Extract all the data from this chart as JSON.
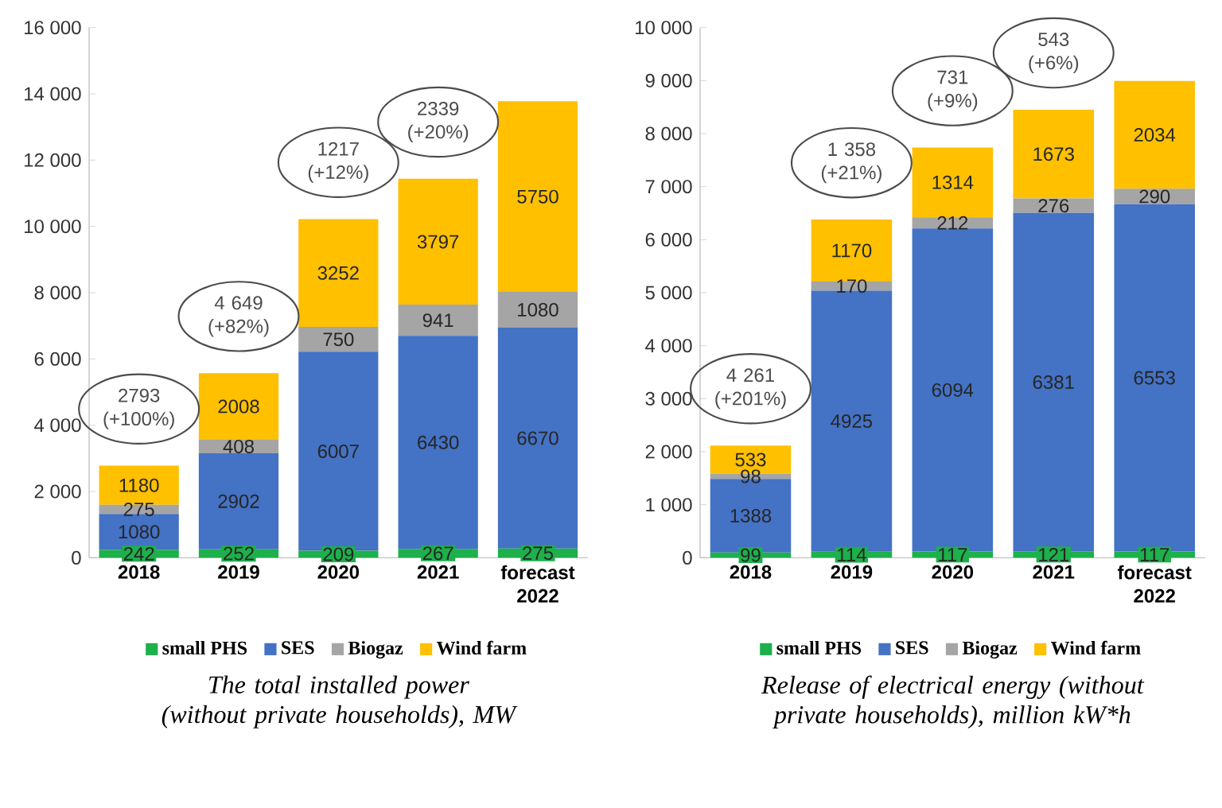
{
  "chart_data": [
    {
      "type": "bar",
      "stacked": true,
      "title": "The total installed power (without private households), MW",
      "categories": [
        "2018",
        "2019",
        "2020",
        "2021",
        "forecast 2022"
      ],
      "series": [
        {
          "name": "small PHS",
          "color": "#1db04b",
          "values": [
            242,
            252,
            209,
            267,
            275
          ]
        },
        {
          "name": "SES",
          "color": "#4472c4",
          "values": [
            1080,
            2902,
            6007,
            6430,
            6670
          ]
        },
        {
          "name": "Biogaz",
          "color": "#a5a5a5",
          "values": [
            275,
            408,
            750,
            941,
            1080
          ]
        },
        {
          "name": "Wind farm",
          "color": "#ffc000",
          "values": [
            1180,
            2008,
            3252,
            3797,
            5750
          ]
        }
      ],
      "ylim": [
        0,
        16000
      ],
      "yticks": [
        0,
        {
          "value": 2000,
          "label": "2 000"
        },
        {
          "value": 4000,
          "label": "4 000"
        },
        {
          "value": 6000,
          "label": "6 000"
        },
        {
          "value": 8000,
          "label": "8 000"
        },
        {
          "value": 10000,
          "label": "10 000"
        },
        {
          "value": 12000,
          "label": "12 000"
        },
        {
          "value": 14000,
          "label": "14 000"
        },
        {
          "value": 16000,
          "label": "16 000"
        }
      ],
      "data_labels": true,
      "legend": "bottom",
      "grid": false,
      "annotations": [
        "2793 (+100%)",
        "4 649 (+82%)",
        "1217 (+12%)",
        "2339 (+20%)"
      ]
    },
    {
      "type": "bar",
      "stacked": true,
      "title": "Release of electrical energy (without private households), million kW*h",
      "categories": [
        "2018",
        "2019",
        "2020",
        "2021",
        "forecast 2022"
      ],
      "series": [
        {
          "name": "small PHS",
          "color": "#1db04b",
          "values": [
            99,
            114,
            117,
            121,
            117
          ]
        },
        {
          "name": "SES",
          "color": "#4472c4",
          "values": [
            1388,
            4925,
            6094,
            6381,
            6553
          ]
        },
        {
          "name": "Biogaz",
          "color": "#a5a5a5",
          "values": [
            98,
            170,
            212,
            276,
            290
          ]
        },
        {
          "name": "Wind farm",
          "color": "#ffc000",
          "values": [
            533,
            1170,
            1314,
            1673,
            2034
          ]
        }
      ],
      "ylim": [
        0,
        10000
      ],
      "yticks": [
        0,
        {
          "value": 1000,
          "label": "1 000"
        },
        {
          "value": 2000,
          "label": "2 000"
        },
        {
          "value": 3000,
          "label": "3 000"
        },
        {
          "value": 4000,
          "label": "4 000"
        },
        {
          "value": 5000,
          "label": "5 000"
        },
        {
          "value": 6000,
          "label": "6 000"
        },
        {
          "value": 7000,
          "label": "7 000"
        },
        {
          "value": 8000,
          "label": "8 000"
        },
        {
          "value": 9000,
          "label": "9 000"
        },
        {
          "value": 10000,
          "label": "10 000"
        }
      ],
      "data_labels": true,
      "legend": "bottom",
      "grid": false,
      "annotations": [
        "4 261 (+201%)",
        "1 358 (+21%)",
        "731 (+9%)",
        "543 (+6%)"
      ]
    }
  ]
}
